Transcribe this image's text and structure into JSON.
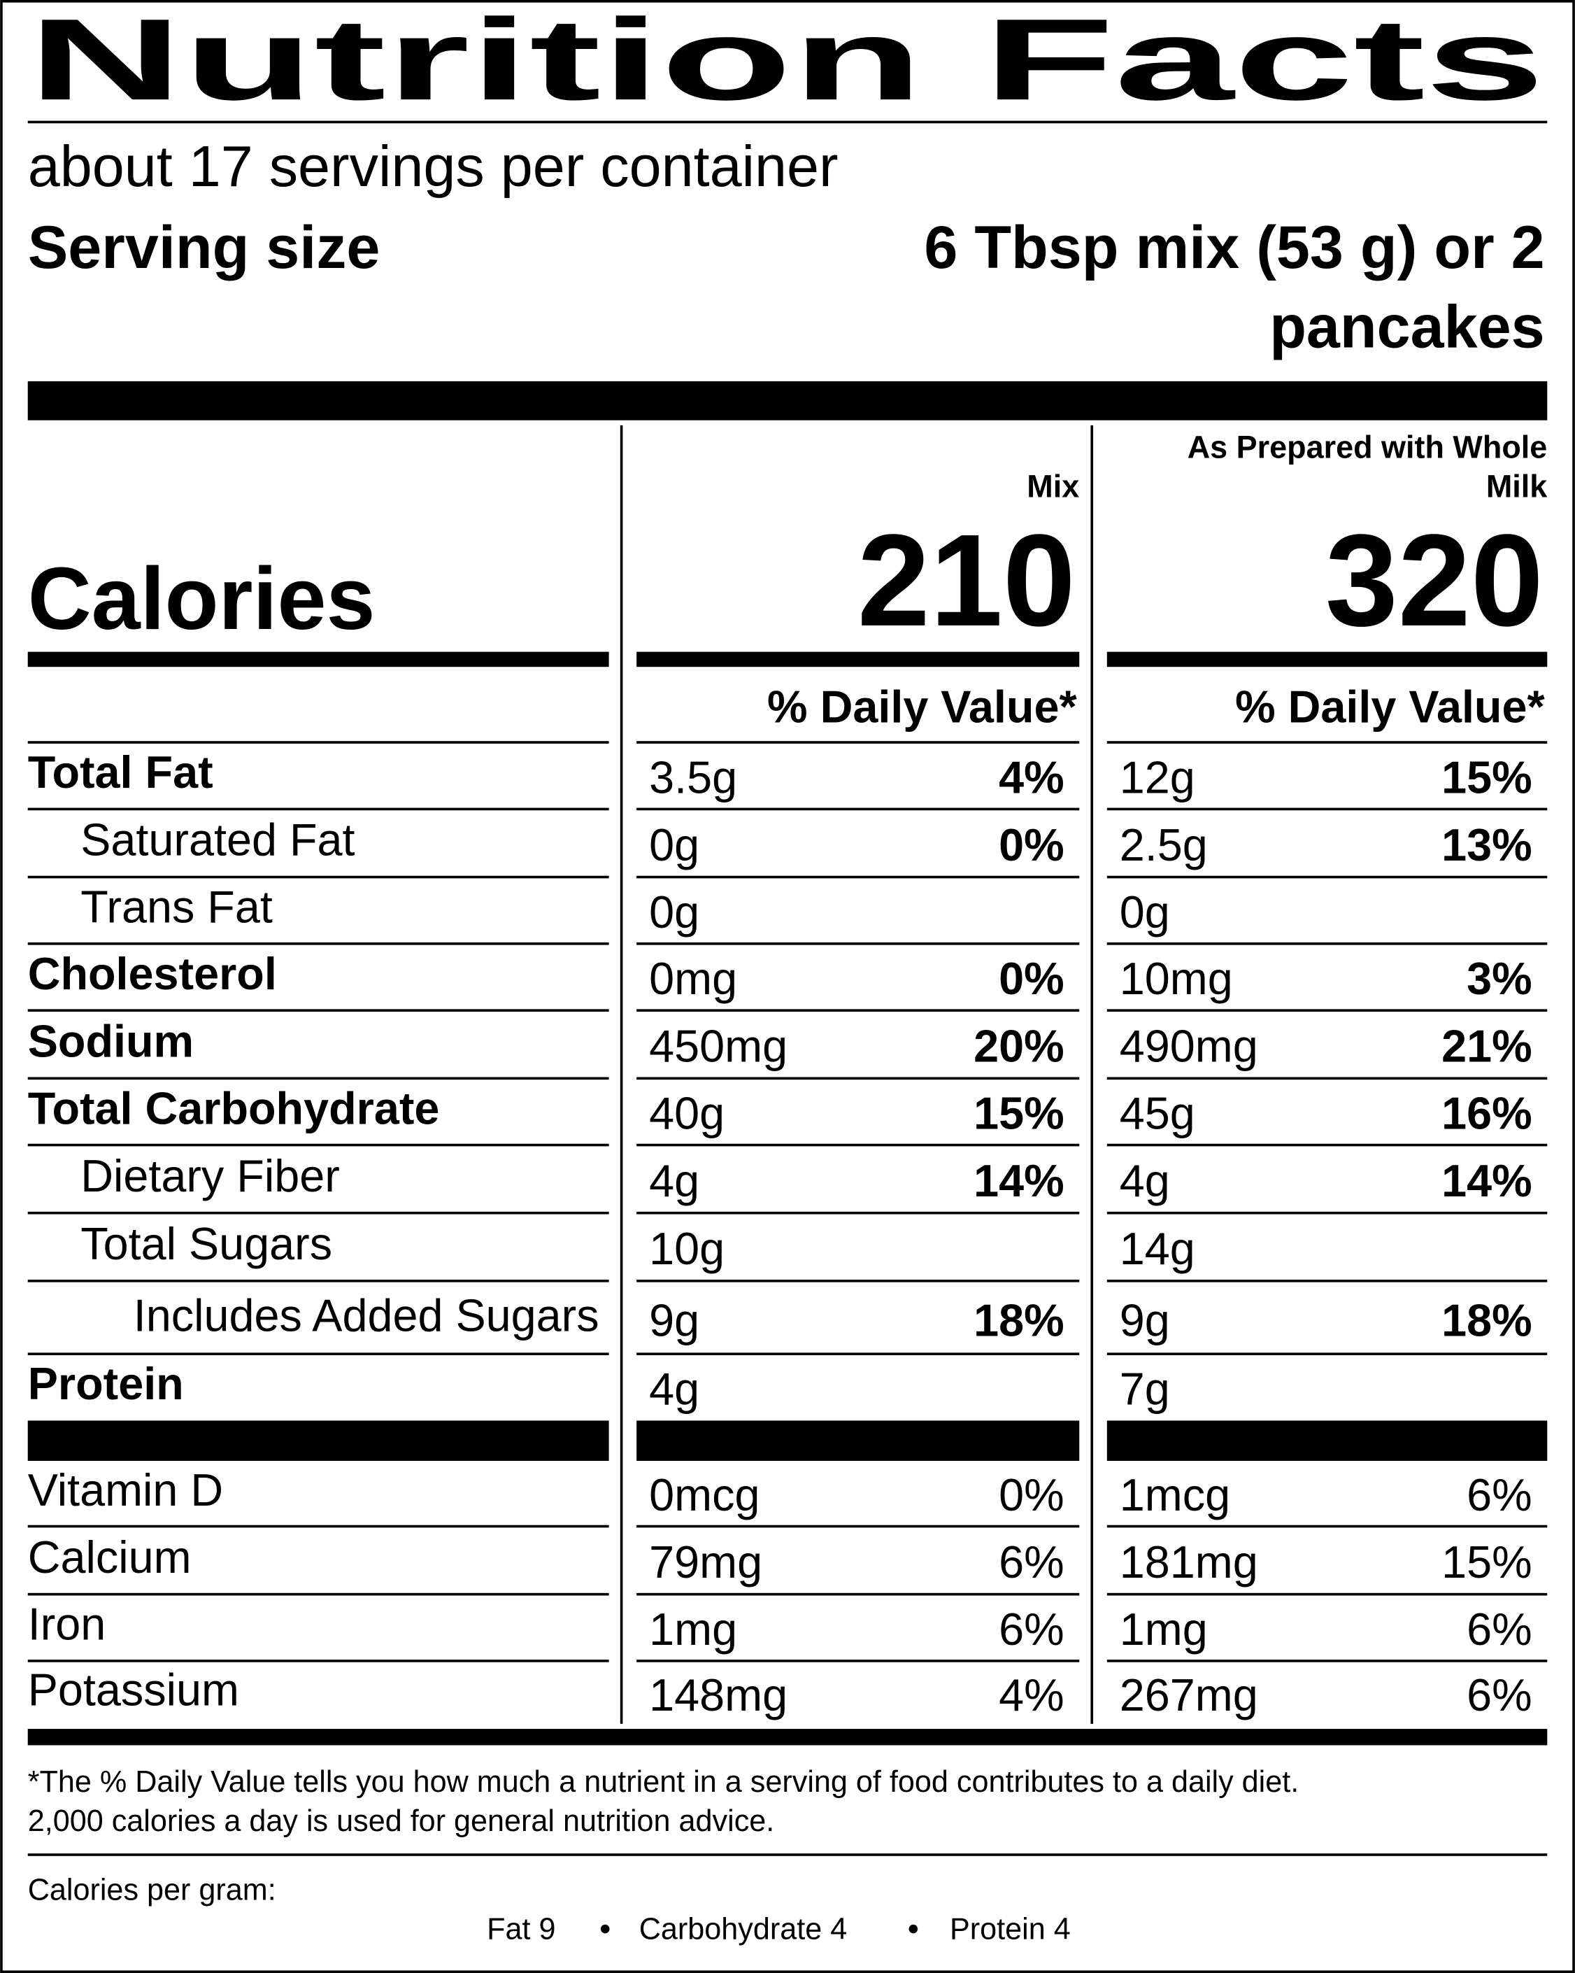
{
  "title": "Nutrition Facts",
  "servings": "about 17 servings per container",
  "serving_size": {
    "label": "Serving size",
    "value_lines": [
      "6 Tbsp mix (53 g) or 2",
      "pancakes"
    ]
  },
  "calories_label": "Calories",
  "columns": [
    {
      "name_lines": [
        "Mix"
      ],
      "calories": "210",
      "dv_header": "% Daily Value*"
    },
    {
      "name_lines": [
        "As Prepared with Whole",
        "Milk"
      ],
      "calories": "320",
      "dv_header": "% Daily Value*"
    }
  ],
  "nutrients": [
    {
      "label": "Total Fat",
      "mix_amount": "3.5g",
      "mix_dv": "4%",
      "prepared_amount": "12g",
      "prepared_dv": "15%"
    },
    {
      "label": "Saturated Fat",
      "mix_amount": "0g",
      "mix_dv": "0%",
      "prepared_amount": "2.5g",
      "prepared_dv": "13%"
    },
    {
      "label": "Trans Fat",
      "mix_amount": "0g",
      "prepared_amount": "0g"
    },
    {
      "label": "Cholesterol",
      "mix_amount": "0mg",
      "mix_dv": "0%",
      "prepared_amount": "10mg",
      "prepared_dv": "3%"
    },
    {
      "label": "Sodium",
      "mix_amount": "450mg",
      "mix_dv": "20%",
      "prepared_amount": "490mg",
      "prepared_dv": "21%"
    },
    {
      "label": "Total Carbohydrate",
      "mix_amount": "40g",
      "mix_dv": "15%",
      "prepared_amount": "45g",
      "prepared_dv": "16%"
    },
    {
      "label": "Dietary Fiber",
      "mix_amount": "4g",
      "mix_dv": "14%",
      "prepared_amount": "4g",
      "prepared_dv": "14%"
    },
    {
      "label": "Total Sugars",
      "mix_amount": "10g",
      "prepared_amount": "14g"
    },
    {
      "label": "Includes Added Sugars",
      "mix_amount": "9g",
      "mix_dv": "18%",
      "prepared_amount": "9g",
      "prepared_dv": "18%"
    },
    {
      "label": "Protein",
      "mix_amount": "4g",
      "prepared_amount": "7g"
    }
  ],
  "vitamins": [
    {
      "label": "Vitamin D",
      "mix_amount": "0mcg",
      "mix_dv": "0%",
      "prepared_amount": "1mcg",
      "prepared_dv": "6%"
    },
    {
      "label": "Calcium",
      "mix_amount": "79mg",
      "mix_dv": "6%",
      "prepared_amount": "181mg",
      "prepared_dv": "15%"
    },
    {
      "label": "Iron",
      "mix_amount": "1mg",
      "mix_dv": "6%",
      "prepared_amount": "1mg",
      "prepared_dv": "6%"
    },
    {
      "label": "Potassium",
      "mix_amount": "148mg",
      "mix_dv": "4%",
      "prepared_amount": "267mg",
      "prepared_dv": "6%"
    }
  ],
  "footnote_lines": [
    "*The % Daily Value tells you how much a nutrient in a serving of food contributes to a daily diet.",
    "2,000 calories a day is used for general nutrition advice."
  ],
  "calories_per_gram": {
    "label": "Calories per gram:",
    "items": [
      "Fat 9",
      "Carbohydrate 4",
      "Protein 4"
    ]
  }
}
